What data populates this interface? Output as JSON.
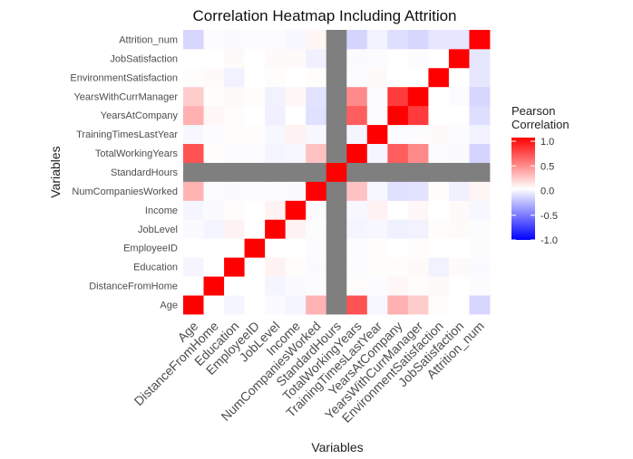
{
  "chart_data": {
    "type": "heatmap",
    "title": "Correlation Heatmap Including Attrition",
    "xlabel": "Variables",
    "ylabel": "Variables",
    "variables": [
      "Age",
      "DistanceFromHome",
      "Education",
      "EmployeeID",
      "JobLevel",
      "Income",
      "NumCompaniesWorked",
      "StandardHours",
      "TotalWorkingYears",
      "TrainingTimesLastYear",
      "YearsAtCompany",
      "YearsWithCurrManager",
      "EnvironmentSatisfaction",
      "JobSatisfaction",
      "Attrition_num"
    ],
    "na_variable": "StandardHours",
    "na_color": "#7f7f7f",
    "matrix": [
      [
        1.0,
        0.0,
        -0.04,
        0.0,
        -0.02,
        -0.04,
        0.3,
        null,
        0.68,
        -0.03,
        0.31,
        0.2,
        0.01,
        0.0,
        -0.16
      ],
      [
        0.0,
        1.0,
        0.0,
        0.0,
        -0.04,
        -0.02,
        -0.01,
        null,
        0.01,
        -0.01,
        0.03,
        0.01,
        0.02,
        0.0,
        -0.01
      ],
      [
        -0.04,
        0.0,
        1.0,
        0.0,
        0.05,
        0.01,
        -0.02,
        null,
        -0.01,
        0.01,
        0.01,
        0.02,
        -0.05,
        0.02,
        -0.02
      ],
      [
        0.0,
        0.0,
        0.0,
        1.0,
        0.0,
        0.0,
        -0.01,
        null,
        -0.01,
        0.01,
        0.0,
        0.01,
        0.0,
        0.0,
        -0.01
      ],
      [
        -0.02,
        -0.04,
        0.05,
        0.0,
        1.0,
        0.05,
        -0.01,
        null,
        -0.04,
        -0.03,
        -0.06,
        -0.05,
        0.01,
        0.02,
        -0.01
      ],
      [
        -0.04,
        -0.02,
        0.01,
        0.0,
        0.05,
        1.0,
        -0.02,
        null,
        -0.03,
        0.05,
        0.0,
        0.03,
        0.0,
        0.02,
        -0.03
      ],
      [
        0.3,
        -0.01,
        -0.02,
        -0.01,
        -0.01,
        -0.02,
        1.0,
        null,
        0.24,
        -0.03,
        -0.12,
        -0.11,
        0.01,
        -0.06,
        0.04
      ],
      [
        null,
        null,
        null,
        null,
        null,
        null,
        null,
        1.0,
        null,
        null,
        null,
        null,
        null,
        null,
        null
      ],
      [
        0.68,
        0.01,
        -0.01,
        -0.01,
        -0.04,
        -0.03,
        0.24,
        null,
        1.0,
        -0.04,
        0.63,
        0.46,
        -0.01,
        -0.02,
        -0.17
      ],
      [
        -0.03,
        -0.01,
        0.01,
        0.01,
        -0.03,
        0.05,
        -0.03,
        null,
        -0.04,
        1.0,
        -0.01,
        -0.01,
        0.02,
        -0.01,
        -0.05
      ],
      [
        0.31,
        0.03,
        0.01,
        0.0,
        -0.06,
        0.0,
        -0.12,
        null,
        0.63,
        -0.01,
        1.0,
        0.77,
        0.0,
        0.0,
        -0.13
      ],
      [
        0.2,
        0.01,
        0.02,
        0.01,
        -0.05,
        0.03,
        -0.11,
        null,
        0.46,
        -0.01,
        0.77,
        1.0,
        0.0,
        -0.01,
        -0.16
      ],
      [
        0.01,
        0.02,
        -0.05,
        0.0,
        0.01,
        0.0,
        0.01,
        null,
        -0.01,
        0.02,
        0.0,
        0.0,
        1.0,
        0.0,
        -0.1
      ],
      [
        0.0,
        0.0,
        0.02,
        0.0,
        0.02,
        0.02,
        -0.06,
        null,
        -0.02,
        -0.01,
        0.0,
        -0.01,
        0.0,
        1.0,
        -0.1
      ],
      [
        -0.16,
        -0.01,
        -0.02,
        -0.01,
        -0.01,
        -0.03,
        0.04,
        null,
        -0.17,
        -0.05,
        -0.13,
        -0.16,
        -0.1,
        -0.1,
        1.0
      ]
    ],
    "legend": {
      "title_line1": "Pearson",
      "title_line2": "Correlation",
      "ticks": [
        1.0,
        0.5,
        0.0,
        -0.5,
        -1.0
      ],
      "tick_labels": [
        "1.0",
        "0.5",
        "0.0",
        "-0.5",
        "-1.0"
      ],
      "low_color": "#0000ff",
      "mid_color": "#ffffff",
      "high_color": "#ff0000",
      "limits": [
        -1,
        1
      ],
      "placement": "right"
    }
  }
}
